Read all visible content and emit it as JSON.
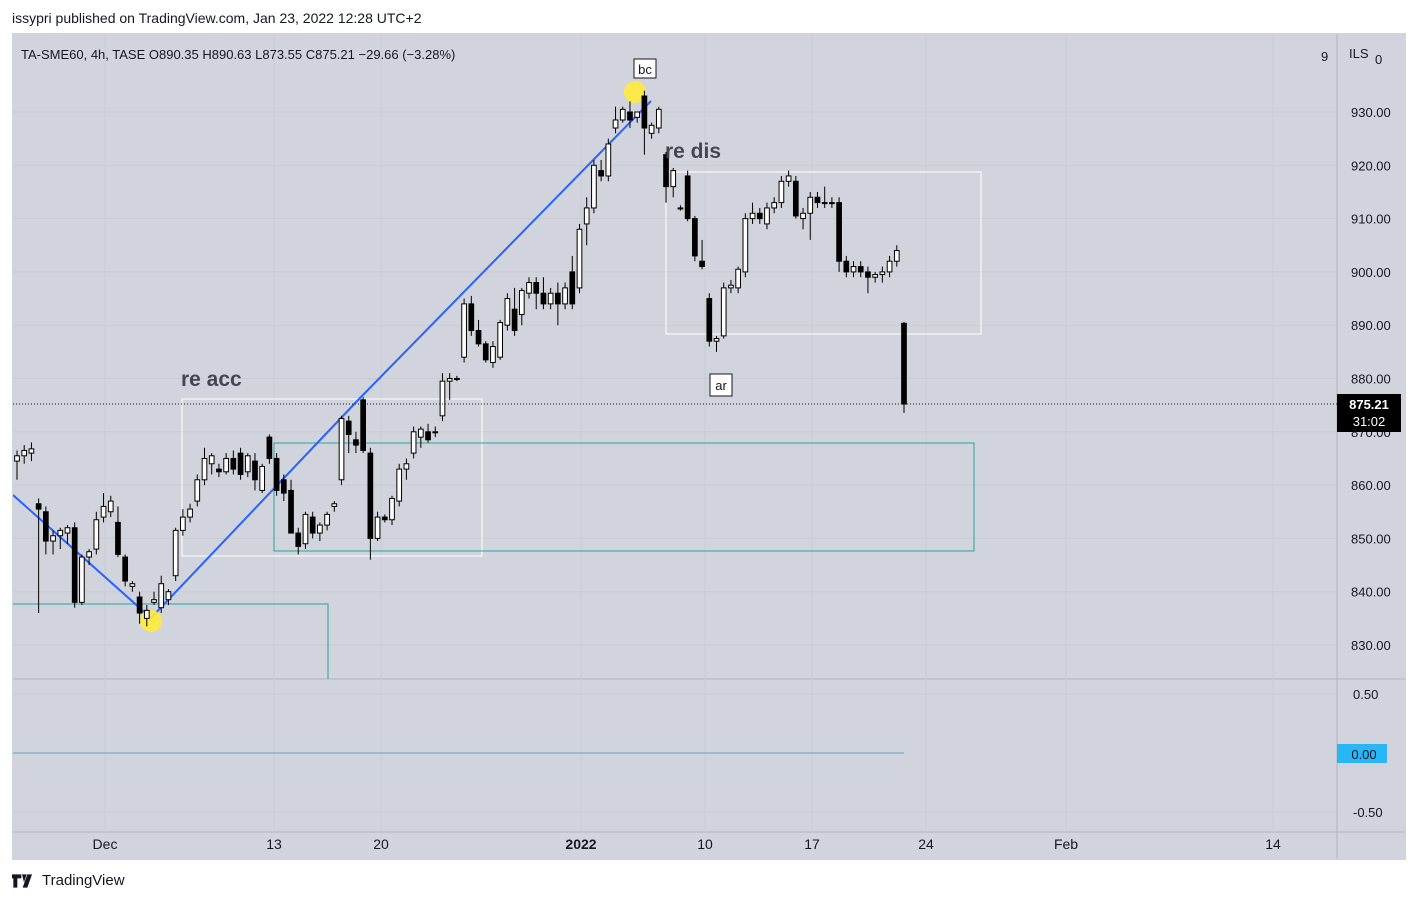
{
  "header": {
    "published_by": "issypri published on TradingView.com, Jan 23, 2022 12:28 UTC+2"
  },
  "footer": {
    "brand": "TradingView"
  },
  "colors": {
    "background": "#d1d4dc",
    "up_body": "#ffffff",
    "down_body": "#000000",
    "trend_line": "#2962ff",
    "green_box": "#26a69a",
    "white_box": "#ffffff",
    "indicator_line": "#5ba6c9",
    "label_bg": "#000000",
    "zero_badge": "#29b6f6",
    "highlight": "#ffeb3b"
  },
  "chart_data": {
    "type": "candlestick",
    "symbol_line": "TA-SME60, 4h, TASE  O890.35  H890.63  L873.55  C875.21  −29.66 (−3.28%)",
    "price_axis": {
      "currency": "ILS",
      "top_value": "9",
      "top_partial": "0",
      "ticks": [
        "930.00",
        "920.00",
        "910.00",
        "900.00",
        "890.00",
        "880.00",
        "870.00",
        "860.00",
        "850.00",
        "840.00",
        "830.00"
      ],
      "range": [
        823,
        943
      ]
    },
    "indicator_axis": {
      "ticks": [
        "0.50",
        "0.00",
        "-0.50"
      ],
      "range": [
        -0.6,
        0.6
      ],
      "current": "0.00"
    },
    "time_axis": {
      "labels": [
        {
          "text": "Dec",
          "bold": false
        },
        {
          "text": "13",
          "bold": false
        },
        {
          "text": "20",
          "bold": false
        },
        {
          "text": "2022",
          "bold": true
        },
        {
          "text": "10",
          "bold": false
        },
        {
          "text": "17",
          "bold": false
        },
        {
          "text": "24",
          "bold": false
        },
        {
          "text": "Feb",
          "bold": false
        },
        {
          "text": "14",
          "bold": false
        }
      ]
    },
    "last_price": {
      "value": "875.21",
      "countdown": "31:02"
    },
    "annotations": [
      {
        "text": "re acc"
      },
      {
        "text": "re dis"
      },
      {
        "text": "bc"
      },
      {
        "text": "ar"
      }
    ],
    "candles": [
      [
        864.5,
        866.5,
        861,
        865.5
      ],
      [
        865.5,
        867.5,
        864,
        866.5
      ],
      [
        866,
        868,
        864.5,
        866.8
      ],
      [
        856.5,
        857.5,
        836,
        855.5
      ],
      [
        855,
        856,
        847,
        849.5
      ],
      [
        849.5,
        851.5,
        847,
        850.5
      ],
      [
        850.5,
        852,
        848,
        851.5
      ],
      [
        851,
        852.5,
        849,
        852
      ],
      [
        852,
        853,
        837,
        838
      ],
      [
        838,
        847,
        837.5,
        846.5
      ],
      [
        846.5,
        848,
        845,
        847.5
      ],
      [
        848,
        855,
        847,
        853.5
      ],
      [
        854,
        858.5,
        853,
        856
      ],
      [
        855,
        858,
        854,
        857
      ],
      [
        853,
        856,
        846.5,
        847
      ],
      [
        846.5,
        847,
        841,
        842
      ],
      [
        841,
        842,
        840,
        841.5
      ],
      [
        839,
        840,
        834,
        836
      ],
      [
        835,
        837.5,
        833.5,
        836.5
      ],
      [
        838,
        840,
        837.5,
        838.5
      ],
      [
        837,
        843,
        836,
        841.5
      ],
      [
        838.5,
        840.5,
        837.5,
        840
      ],
      [
        843,
        852,
        842,
        851.5
      ],
      [
        851.5,
        855.5,
        850.5,
        854
      ],
      [
        854,
        856.5,
        853,
        855.5
      ],
      [
        857,
        862,
        856,
        861
      ],
      [
        861,
        867,
        860,
        865
      ],
      [
        864,
        866,
        862,
        865.5
      ],
      [
        863,
        864,
        861.5,
        862.5
      ],
      [
        862.5,
        866,
        862,
        865
      ],
      [
        865,
        866.5,
        862,
        863
      ],
      [
        866,
        867,
        861,
        862
      ],
      [
        862.5,
        866,
        861.5,
        865.5
      ],
      [
        864.5,
        866,
        859,
        861
      ],
      [
        859,
        864,
        858.5,
        863.5
      ],
      [
        869,
        869.5,
        864,
        865
      ],
      [
        865,
        866,
        858,
        859
      ],
      [
        861,
        862,
        857,
        858.5
      ],
      [
        859,
        861,
        851,
        851
      ],
      [
        851,
        852,
        847,
        848.5
      ],
      [
        849,
        855,
        848,
        854.5
      ],
      [
        854,
        855,
        850,
        851
      ],
      [
        851,
        853,
        849.5,
        852.5
      ],
      [
        852.5,
        855,
        851.5,
        854.5
      ],
      [
        856,
        857,
        855,
        856.5
      ],
      [
        861,
        873,
        860,
        872.5
      ],
      [
        872,
        873,
        866,
        869.5
      ],
      [
        868.5,
        870,
        866,
        867.5
      ],
      [
        876,
        876.5,
        866,
        866.5
      ],
      [
        866,
        867,
        846,
        850
      ],
      [
        850,
        855,
        849.5,
        854
      ],
      [
        854,
        854.5,
        853,
        853.5
      ],
      [
        853.5,
        858,
        852.5,
        857.5
      ],
      [
        857,
        864,
        856,
        863
      ],
      [
        863,
        865,
        861,
        864
      ],
      [
        866,
        871,
        865,
        870
      ],
      [
        869,
        871,
        867,
        870.5
      ],
      [
        870,
        871.5,
        868,
        868.5
      ],
      [
        870,
        871,
        869,
        870
      ],
      [
        873,
        881,
        872,
        879.5
      ],
      [
        879.5,
        881,
        876,
        880
      ],
      [
        880,
        880.5,
        879.5,
        880
      ],
      [
        884,
        895,
        883,
        894
      ],
      [
        894,
        895.5,
        888,
        889
      ],
      [
        889,
        891,
        886,
        886.5
      ],
      [
        886.5,
        887,
        883,
        883.5
      ],
      [
        883,
        887,
        882,
        886
      ],
      [
        884,
        891,
        883.5,
        890.5
      ],
      [
        890,
        896,
        889,
        895
      ],
      [
        893,
        897,
        888,
        889
      ],
      [
        892,
        897,
        890,
        896.5
      ],
      [
        896,
        899,
        895,
        898
      ],
      [
        898,
        899,
        893,
        896
      ],
      [
        896,
        899,
        893,
        894
      ],
      [
        894,
        897,
        893,
        896
      ],
      [
        896,
        898,
        890,
        894
      ],
      [
        894,
        898,
        893,
        897
      ],
      [
        900,
        903,
        893,
        894
      ],
      [
        897,
        909,
        896,
        908
      ],
      [
        909,
        914,
        905,
        912
      ],
      [
        912,
        921,
        911,
        920
      ],
      [
        919,
        921,
        917,
        918
      ],
      [
        918,
        925,
        917,
        924
      ],
      [
        927,
        931,
        926,
        928.5
      ],
      [
        928.5,
        931,
        928,
        930.5
      ],
      [
        930,
        932,
        927,
        928.5
      ],
      [
        929,
        930,
        928,
        930
      ],
      [
        933,
        934,
        922,
        927
      ],
      [
        926,
        928,
        925,
        927.5
      ],
      [
        927,
        931,
        926,
        930.5
      ],
      [
        922,
        922.5,
        913,
        916
      ],
      [
        916,
        919.5,
        914,
        919
      ],
      [
        912,
        912.5,
        911.5,
        912
      ],
      [
        918,
        919,
        909.5,
        910
      ],
      [
        910,
        910.5,
        902,
        903
      ],
      [
        902,
        906,
        900.5,
        901
      ],
      [
        895,
        896,
        886,
        887
      ],
      [
        887,
        888,
        885,
        887.5
      ],
      [
        888,
        898,
        887.5,
        897
      ],
      [
        897,
        898.5,
        896,
        897.5
      ],
      [
        897,
        901,
        896,
        900.5
      ],
      [
        900,
        911,
        899,
        910
      ],
      [
        910,
        913,
        909,
        911
      ],
      [
        911,
        912,
        909,
        910
      ],
      [
        909,
        913,
        908,
        912
      ],
      [
        912,
        914,
        911,
        913
      ],
      [
        913,
        918,
        912,
        917
      ],
      [
        917,
        919,
        916,
        918
      ],
      [
        917,
        918,
        910,
        910.5
      ],
      [
        910,
        912,
        908,
        911
      ],
      [
        911,
        915,
        906,
        914
      ],
      [
        914,
        915,
        912,
        913
      ],
      [
        913,
        916,
        912,
        913
      ],
      [
        913,
        914,
        912,
        913
      ],
      [
        913,
        914,
        900,
        902
      ],
      [
        902,
        903,
        899,
        900
      ],
      [
        900,
        902,
        899,
        901
      ],
      [
        901,
        902,
        899,
        900
      ],
      [
        900,
        901,
        896,
        899
      ],
      [
        899,
        900,
        898,
        899.5
      ],
      [
        899.5,
        901,
        898,
        900
      ],
      [
        900,
        903,
        899,
        902
      ],
      [
        902,
        905,
        901,
        904
      ],
      [
        890.35,
        890.63,
        873.55,
        875.21
      ]
    ]
  }
}
